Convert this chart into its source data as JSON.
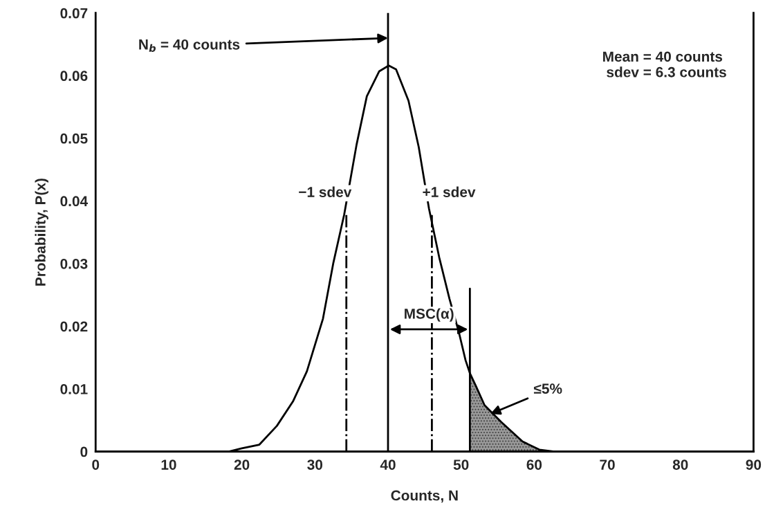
{
  "chart_data": {
    "type": "line",
    "xlabel": "Counts, N",
    "ylabel": "Probability, P(x)",
    "xlim": [
      0,
      90
    ],
    "ylim": [
      0,
      0.07
    ],
    "xticks": [
      0,
      10,
      20,
      30,
      40,
      50,
      60,
      70,
      80,
      90
    ],
    "yticks": [
      0,
      0.01,
      0.02,
      0.03,
      0.04,
      0.05,
      0.06,
      0.07
    ],
    "grid": false,
    "series": [
      {
        "color": "#000000",
        "x": [
          18.2,
          20,
          22.4,
          24.8,
          27,
          28.9,
          31.1,
          32.5,
          34,
          35.7,
          37.1,
          38.8,
          40.1,
          41.1,
          42.8,
          44.2,
          45.6,
          47,
          48.4,
          49.7,
          50.6,
          51.2,
          52,
          53.2,
          55.5,
          58.4,
          60.7,
          62.6
        ],
        "values": [
          0,
          0.0005,
          0.0011,
          0.0041,
          0.008,
          0.0128,
          0.0212,
          0.03,
          0.0378,
          0.049,
          0.0567,
          0.0607,
          0.0616,
          0.061,
          0.056,
          0.0486,
          0.0388,
          0.031,
          0.0244,
          0.019,
          0.0146,
          0.0125,
          0.0105,
          0.0074,
          0.0047,
          0.0016,
          0.0003,
          0
        ]
      },
      {
        "type": "area",
        "color": "#808080",
        "x": [
          51.2,
          52,
          53.2,
          55.5,
          58.4,
          60.7,
          62.6
        ],
        "values": [
          0.0125,
          0.0105,
          0.0074,
          0.0047,
          0.0016,
          0.0003,
          0
        ]
      },
      {
        "type": "line",
        "color": "#000000",
        "line_style": "dashdot",
        "x": [
          34.3,
          34.3
        ],
        "values": [
          0,
          0.038
        ]
      },
      {
        "type": "line",
        "color": "#000000",
        "line_style": "dashdot",
        "x": [
          46,
          46
        ],
        "values": [
          0,
          0.038
        ]
      },
      {
        "type": "line",
        "color": "#000000",
        "x": [
          51.2,
          51.2
        ],
        "values": [
          0,
          0.026
        ]
      }
    ],
    "ref_lines": [
      {
        "axis": "x",
        "value": 40,
        "color": "#000000"
      }
    ],
    "annotations": [
      {
        "text": "N$_{b}$ = 40 counts",
        "x": 40,
        "y": 0.066
      },
      "Mean = 40 counts\n sdev = 6.3 counts",
      {
        "text": "−1 sdev",
        "x": 34.3,
        "y": 0.038
      },
      {
        "text": "+1 sdev",
        "x": 46,
        "y": 0.038
      },
      {
        "text": "MSC(α)",
        "x": 45.6,
        "y": 0.0195
      },
      {
        "text": "≤5%",
        "x": 54,
        "y": 0.006
      }
    ]
  }
}
